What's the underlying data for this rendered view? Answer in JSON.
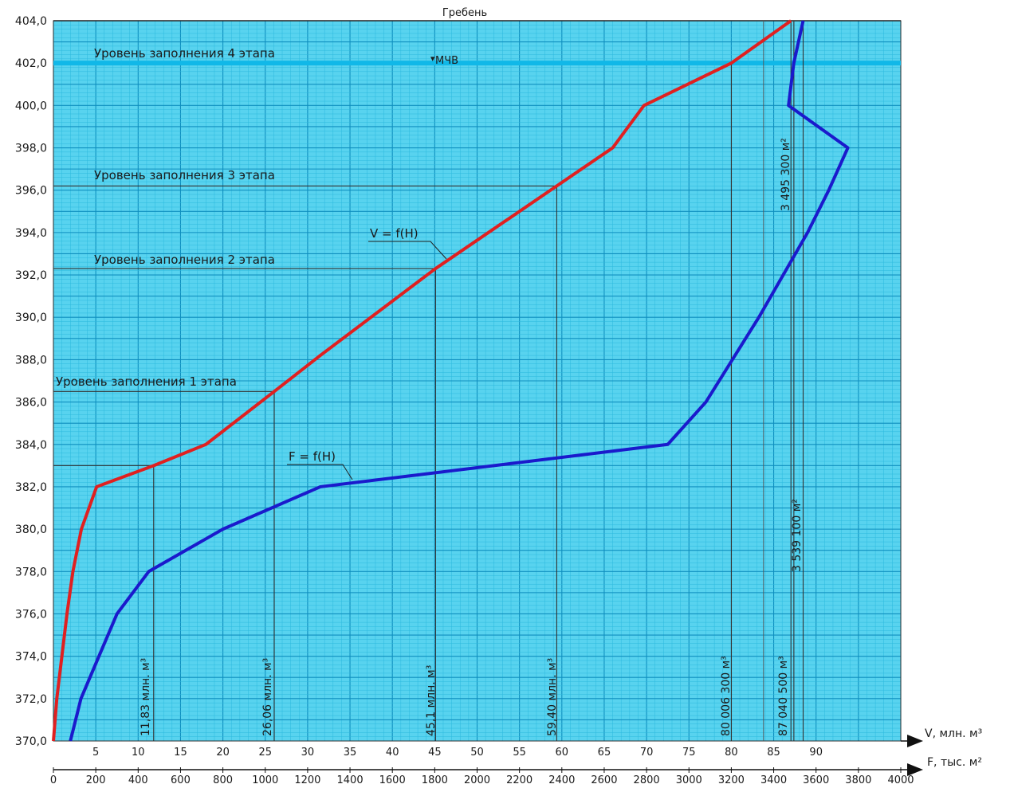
{
  "chart_data": {
    "type": "line",
    "top_label": "Гребень",
    "mchv_label": "МЧВ",
    "y_axis": {
      "min": 370,
      "max": 404,
      "ticks": [
        "370,0",
        "372,0",
        "374,0",
        "376,0",
        "378,0",
        "380,0",
        "382,0",
        "384,0",
        "386,0",
        "388,0",
        "390,0",
        "392,0",
        "394,0",
        "396,0",
        "398,0",
        "400,0",
        "402,0",
        "404,0"
      ]
    },
    "x_axis_v": {
      "label": "V, млн. м³",
      "min": 0,
      "max": 100,
      "ticks": [
        "5",
        "10",
        "15",
        "20",
        "25",
        "30",
        "35",
        "40",
        "45",
        "50",
        "55",
        "60",
        "65",
        "70",
        "75",
        "80",
        "85",
        "90"
      ]
    },
    "x_axis_f": {
      "label": "F, тыс. м²",
      "min": 0,
      "max": 4000,
      "ticks": [
        "0",
        "200",
        "400",
        "600",
        "800",
        "1000",
        "1200",
        "1400",
        "1600",
        "1800",
        "2000",
        "2200",
        "2400",
        "2600",
        "2800",
        "3000",
        "3200",
        "3400",
        "3600",
        "3800",
        "4000"
      ]
    },
    "series": [
      {
        "name": "V = f(H)",
        "color": "#e02020",
        "axis": "V",
        "points": [
          [
            0,
            370
          ],
          [
            0.4,
            372
          ],
          [
            1,
            374
          ],
          [
            1.6,
            376
          ],
          [
            2.3,
            378
          ],
          [
            3.3,
            380
          ],
          [
            5.1,
            382
          ],
          [
            11.83,
            383
          ],
          [
            18,
            384
          ],
          [
            26.06,
            386.5
          ],
          [
            31.5,
            388.2
          ],
          [
            45.1,
            392.3
          ],
          [
            59.4,
            396.2
          ],
          [
            66,
            398
          ],
          [
            69.7,
            400
          ],
          [
            80.0063,
            402
          ],
          [
            87.0405,
            404
          ]
        ]
      },
      {
        "name": "F = f(H)",
        "color": "#1a1acc",
        "axis": "F",
        "points": [
          [
            80,
            370
          ],
          [
            130,
            372
          ],
          [
            300,
            376
          ],
          [
            450,
            378
          ],
          [
            800,
            380
          ],
          [
            1260,
            382
          ],
          [
            2900,
            384
          ],
          [
            3080,
            386
          ],
          [
            3330,
            390
          ],
          [
            3560,
            394
          ],
          [
            3660,
            396
          ],
          [
            3750,
            398
          ],
          [
            3470,
            400
          ],
          [
            3495,
            402
          ],
          [
            3539,
            404
          ]
        ]
      }
    ],
    "levels": [
      {
        "label": "Уровень заполнения 4 этапа",
        "h": 402
      },
      {
        "label": "Уровень заполнения 3 этапа",
        "h": 396.2
      },
      {
        "label": "Уровень заполнения 2 этапа",
        "h": 392.3
      },
      {
        "label": "Уровень заполнения 1 этапа",
        "h": 386.5
      }
    ],
    "volume_marks": [
      {
        "label": "11,83 млн. м³",
        "v": 11.83,
        "h": 383
      },
      {
        "label": "26,06 млн. м³",
        "v": 26.06,
        "h": 386.5
      },
      {
        "label": "45,1 млн. м³",
        "v": 45.1,
        "h": 392.3
      },
      {
        "label": "59,40 млн. м³",
        "v": 59.4,
        "h": 396.2
      },
      {
        "label": "80 006 300 м³",
        "v": 80.0063,
        "h": 402
      },
      {
        "label": "87 040 500 м³",
        "v": 87.0405,
        "h": 404
      }
    ],
    "area_marks": [
      {
        "label": "3 495 300 м²",
        "f": 3495.3
      },
      {
        "label": "3 539 100 м²",
        "f": 3539.1
      }
    ],
    "colors": {
      "grid_bg": "#58d3ef",
      "grid_minor": "#2cb9de",
      "grid_major": "#0f8fbf",
      "level4_line": "#10b8e8"
    }
  }
}
